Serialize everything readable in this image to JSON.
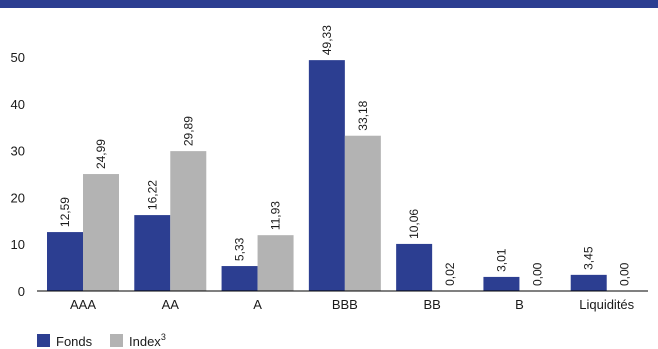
{
  "chart_data": {
    "type": "bar",
    "categories": [
      "AAA",
      "AA",
      "A",
      "BBB",
      "BB",
      "B",
      "Liquidités"
    ],
    "series": [
      {
        "name": "Fonds",
        "values": [
          12.59,
          16.22,
          5.33,
          49.33,
          10.06,
          3.01,
          3.45
        ],
        "labels": [
          "12,59",
          "16,22",
          "5,33",
          "49,33",
          "10,06",
          "3,01",
          "3,45"
        ],
        "color": "#2c3e91"
      },
      {
        "name": "Index",
        "values": [
          24.99,
          29.89,
          11.93,
          33.18,
          0.02,
          0.0,
          0.0
        ],
        "labels": [
          "24,99",
          "29,89",
          "11,93",
          "33,18",
          "0,02",
          "0,00",
          "0,00"
        ],
        "color": "#b3b3b3"
      }
    ],
    "yticks": [
      "0",
      "10",
      "20",
      "30",
      "40",
      "50"
    ],
    "ylim": [
      0,
      50
    ],
    "legend_position": "bottom-left",
    "legend": {
      "fonds_label": "Fonds",
      "index_label": "Index",
      "index_superscript": "3"
    }
  },
  "colors": {
    "top_band": "#2c3e91",
    "axis": "#000000"
  }
}
